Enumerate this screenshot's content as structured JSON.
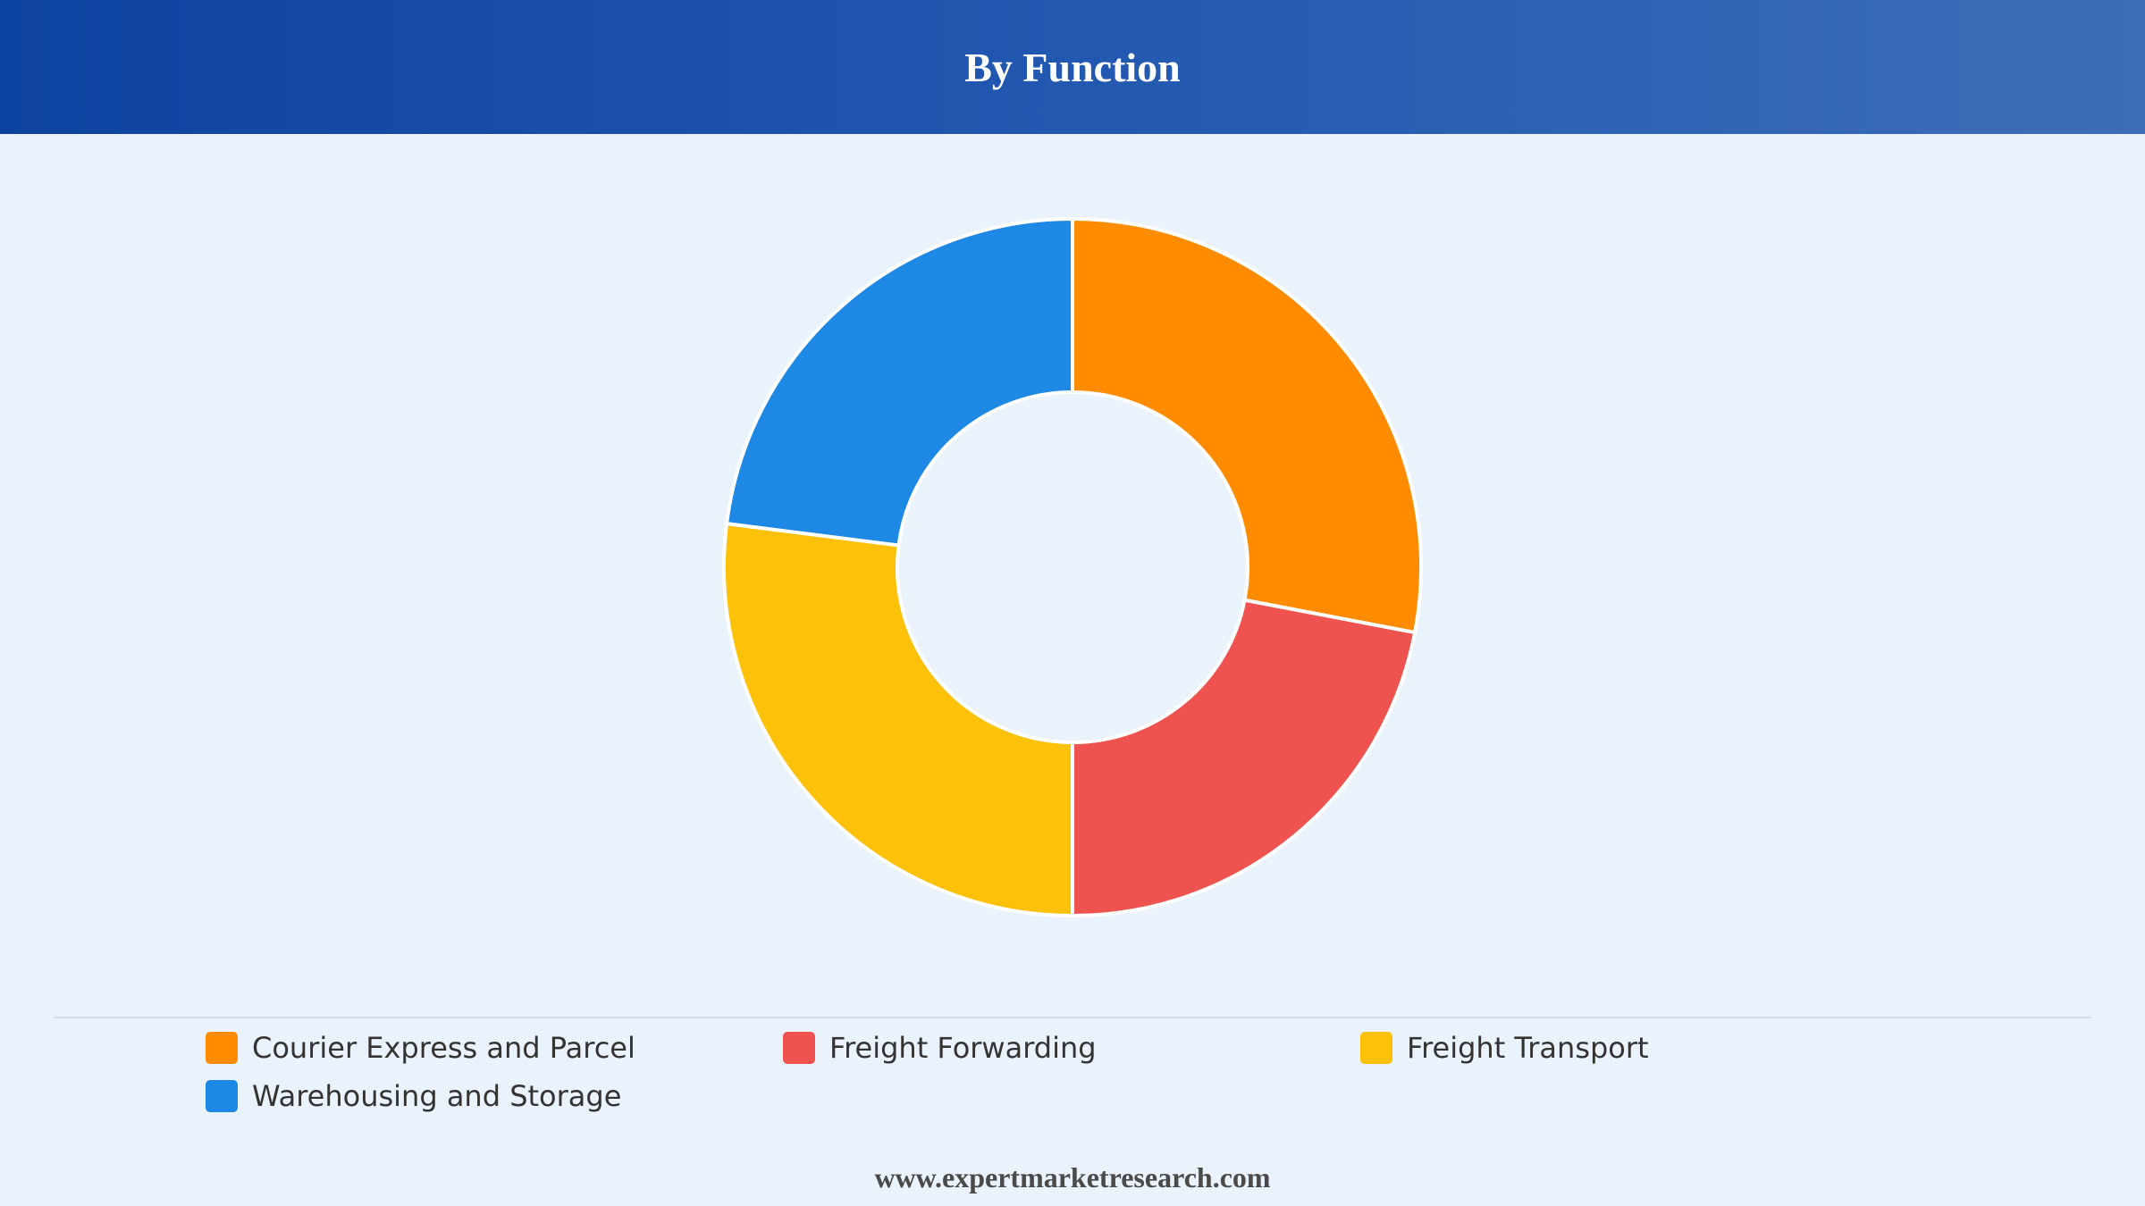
{
  "header": {
    "title": "By Function"
  },
  "chart_data": {
    "type": "pie",
    "title": "By Function",
    "donut": true,
    "categories": [
      "Courier Express and Parcel",
      "Freight Forwarding",
      "Freight Transport",
      "Warehousing and Storage"
    ],
    "values": [
      28,
      22,
      27,
      23
    ],
    "colors": [
      "#ff8c00",
      "#ef5350",
      "#fdc10a",
      "#1e88e5"
    ],
    "legend_position": "bottom"
  },
  "legend": {
    "items": [
      {
        "label": "Courier Express and Parcel",
        "color": "#ff8c00"
      },
      {
        "label": "Freight Forwarding",
        "color": "#ef5350"
      },
      {
        "label": "Freight Transport",
        "color": "#fdc10a"
      },
      {
        "label": "Warehousing and Storage",
        "color": "#1e88e5"
      }
    ]
  },
  "footer": {
    "source": "www.expertmarketresearch.com"
  }
}
